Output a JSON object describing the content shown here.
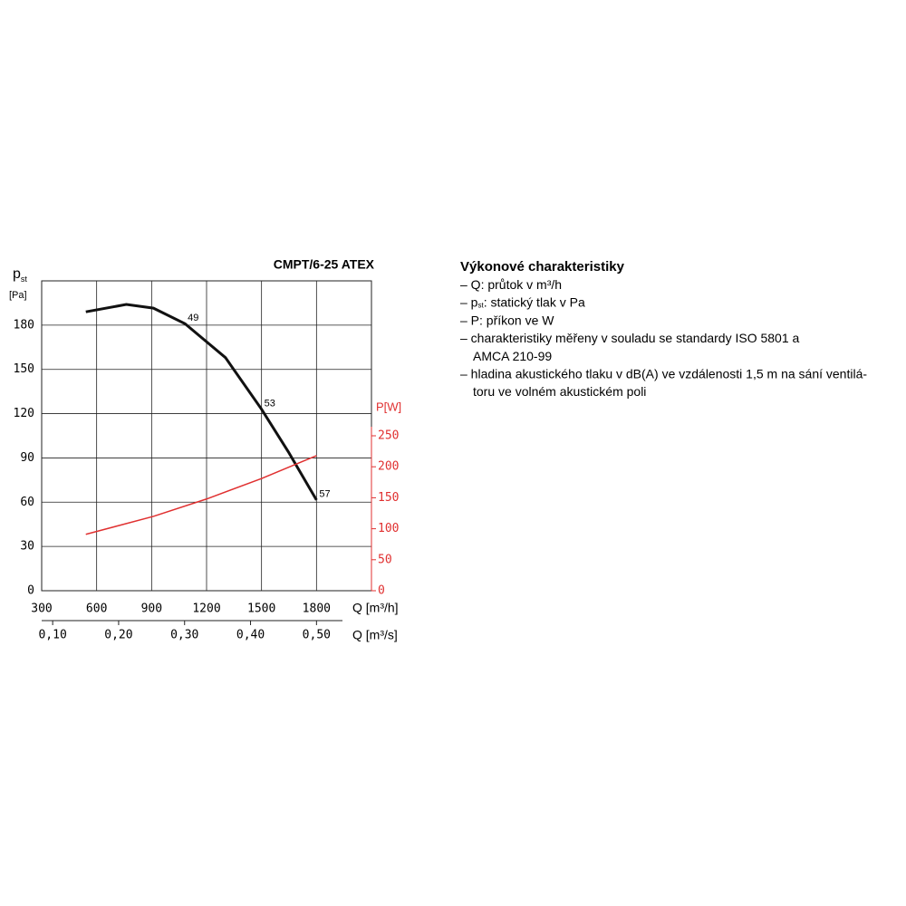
{
  "chart_data": {
    "type": "line",
    "title": "CMPT/6-25 ATEX",
    "y_label": {
      "main": "p",
      "sub": "st",
      "unit": "[Pa]"
    },
    "y2_label": "P[W]",
    "x_label": "Q [m³/h]",
    "x2_label": "Q [m³/s]",
    "xlim": [
      300,
      2100
    ],
    "xticks": [
      300,
      600,
      900,
      1200,
      1500,
      1800
    ],
    "x2lim": [
      0.08333,
      0.58333
    ],
    "x2ticks": [
      {
        "value": 0.1,
        "label": "0,10"
      },
      {
        "value": 0.2,
        "label": "0,20"
      },
      {
        "value": 0.3,
        "label": "0,30"
      },
      {
        "value": 0.4,
        "label": "0,40"
      },
      {
        "value": 0.5,
        "label": "0,50"
      }
    ],
    "ylim": [
      0,
      210
    ],
    "yticks": [
      0,
      30,
      60,
      90,
      120,
      150,
      180
    ],
    "y2lim": [
      0,
      500
    ],
    "y2ticks": [
      0,
      50,
      100,
      150,
      200,
      250
    ],
    "grid": true,
    "series": [
      {
        "name": "p_st",
        "color": "#111111",
        "x": [
          541,
          762,
          910,
          1082,
          1303,
          1500,
          1647,
          1800
        ],
        "values": [
          189,
          194,
          191.5,
          181,
          158,
          123,
          94,
          61.5
        ]
      },
      {
        "name": "P",
        "color": "#e03030",
        "axis": "y2",
        "x": [
          541,
          910,
          1200,
          1500,
          1800
        ],
        "values": [
          91,
          120,
          148,
          181,
          218
        ]
      }
    ],
    "annotations": [
      {
        "text": "49",
        "x": 1082,
        "y": 181
      },
      {
        "text": "53",
        "x": 1500,
        "y": 123
      },
      {
        "text": "57",
        "x": 1800,
        "y": 61.5
      }
    ]
  },
  "notes": {
    "title": "Výkonové charakteristiky",
    "lines": [
      {
        "text": "– Q: průtok v m³/h"
      },
      {
        "text": "– p",
        "sub": "st",
        "rest": ": statický tlak v Pa"
      },
      {
        "text": "– P: příkon ve W"
      },
      {
        "text": "– charakteristiky měřeny v souladu se standardy ISO 5801 a"
      },
      {
        "text": "AMCA 210-99",
        "indent": true
      },
      {
        "text": "– hladina akustického tlaku v dB(A) ve vzdálenosti 1,5 m na sání ventilá-"
      },
      {
        "text": "toru ve volném akustickém poli",
        "indent": true
      }
    ]
  }
}
